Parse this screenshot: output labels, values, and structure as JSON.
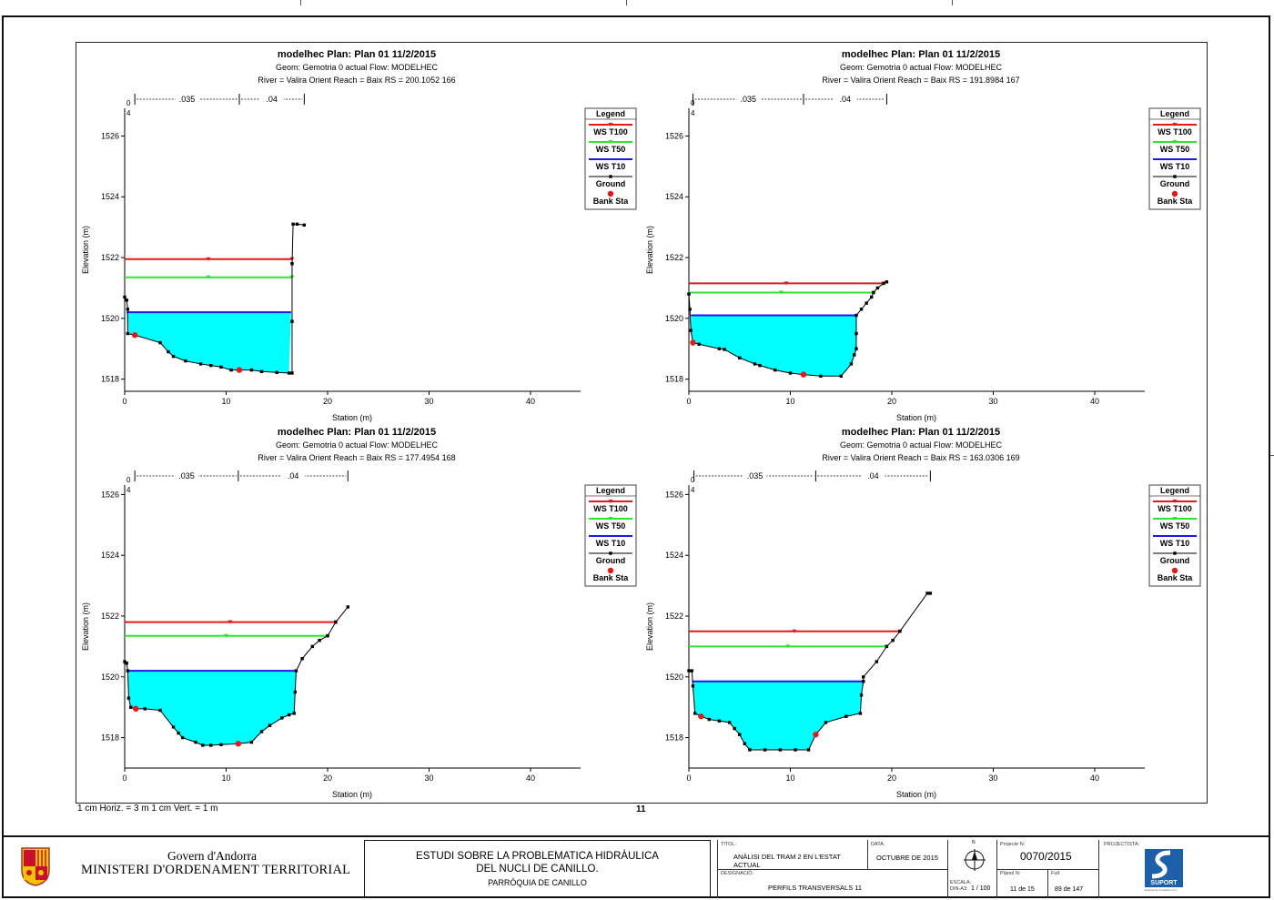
{
  "page": {
    "scale_note": "1 cm Horiz. = 3 m    1 cm Vert. = 1 m",
    "sheet_number": "11"
  },
  "chart_data": [
    {
      "type": "line",
      "title_line1": "modelhec        Plan: Plan 01     11/2/2015",
      "title_line2": "Geom: Gemotria 0 actual    Flow: MODELHEC",
      "title_line3": "River = Valira Orient    Reach = Baix      RS = 200.1052   166",
      "xlabel": "Station (m)",
      "ylabel": "Elevation (m)",
      "xlim": [
        0,
        45
      ],
      "ylim": [
        1517.6,
        1527.4
      ],
      "xticks": [
        0,
        10,
        20,
        30,
        40
      ],
      "yticks": [
        1518,
        1520,
        1522,
        1524,
        1526
      ],
      "top_marks": {
        "zero": "0",
        "four": "4"
      },
      "mannings": [
        {
          "label": ".035",
          "from": 1.0,
          "to": 11.3
        },
        {
          "label": ".04",
          "from": 11.3,
          "to": 17.7
        }
      ],
      "water_surfaces": [
        {
          "name": "WS T100",
          "elev": 1521.95,
          "x0": 0,
          "x1": 16.5
        },
        {
          "name": "WS T50",
          "elev": 1521.35,
          "x0": 0,
          "x1": 16.5
        },
        {
          "name": "WS T10",
          "elev": 1520.2,
          "x0": 0.2,
          "x1": 16.4
        }
      ],
      "ground": [
        [
          0,
          1520.7
        ],
        [
          0.2,
          1520.6
        ],
        [
          0.3,
          1520.3
        ],
        [
          0.3,
          1519.5
        ],
        [
          1.0,
          1519.45
        ],
        [
          3.5,
          1519.2
        ],
        [
          4.3,
          1518.9
        ],
        [
          4.8,
          1518.75
        ],
        [
          6.0,
          1518.6
        ],
        [
          7.5,
          1518.5
        ],
        [
          8.5,
          1518.45
        ],
        [
          9.5,
          1518.4
        ],
        [
          10.5,
          1518.3
        ],
        [
          11.3,
          1518.3
        ],
        [
          12.5,
          1518.3
        ],
        [
          13.5,
          1518.25
        ],
        [
          15.0,
          1518.22
        ],
        [
          16.2,
          1518.2
        ],
        [
          16.5,
          1518.2
        ],
        [
          16.5,
          1519.9
        ],
        [
          16.5,
          1521.8
        ],
        [
          16.6,
          1523.1
        ],
        [
          17.0,
          1523.1
        ],
        [
          17.7,
          1523.07
        ]
      ],
      "bank_sta": [
        [
          1.0,
          1519.45
        ],
        [
          11.3,
          1518.3
        ]
      ]
    },
    {
      "type": "line",
      "title_line1": "modelhec        Plan: Plan 01     11/2/2015",
      "title_line2": "Geom: Gemotria 0 actual    Flow: MODELHEC",
      "title_line3": "River = Valira Orient    Reach = Baix      RS = 191.8984   167",
      "xlabel": "Station (m)",
      "ylabel": "Elevation (m)",
      "xlim": [
        0,
        45
      ],
      "ylim": [
        1517.6,
        1527.4
      ],
      "xticks": [
        0,
        10,
        20,
        30,
        40
      ],
      "yticks": [
        1518,
        1520,
        1522,
        1524,
        1526
      ],
      "top_marks": {
        "zero": "0",
        "four": "4"
      },
      "mannings": [
        {
          "label": ".035",
          "from": 0.4,
          "to": 11.3
        },
        {
          "label": ".04",
          "from": 11.3,
          "to": 19.5
        }
      ],
      "water_surfaces": [
        {
          "name": "WS T100",
          "elev": 1521.15,
          "x0": 0,
          "x1": 19.2
        },
        {
          "name": "WS T50",
          "elev": 1520.85,
          "x0": 0,
          "x1": 18.2
        },
        {
          "name": "WS T10",
          "elev": 1520.1,
          "x0": 0.2,
          "x1": 16.5
        }
      ],
      "ground": [
        [
          0,
          1520.8
        ],
        [
          0.1,
          1520.3
        ],
        [
          0.2,
          1519.6
        ],
        [
          0.4,
          1519.2
        ],
        [
          1.0,
          1519.15
        ],
        [
          3.0,
          1519.0
        ],
        [
          3.5,
          1518.98
        ],
        [
          5.0,
          1518.7
        ],
        [
          6.5,
          1518.5
        ],
        [
          7.0,
          1518.45
        ],
        [
          8.5,
          1518.3
        ],
        [
          10.0,
          1518.2
        ],
        [
          11.3,
          1518.15
        ],
        [
          13.0,
          1518.1
        ],
        [
          15.0,
          1518.1
        ],
        [
          16.0,
          1518.5
        ],
        [
          16.3,
          1518.8
        ],
        [
          16.5,
          1519.0
        ],
        [
          16.5,
          1519.5
        ],
        [
          16.5,
          1520.1
        ],
        [
          17.0,
          1520.3
        ],
        [
          17.5,
          1520.5
        ],
        [
          18.0,
          1520.7
        ],
        [
          18.2,
          1520.85
        ],
        [
          18.6,
          1521.0
        ],
        [
          19.2,
          1521.15
        ],
        [
          19.5,
          1521.2
        ]
      ],
      "bank_sta": [
        [
          0.4,
          1519.2
        ],
        [
          11.3,
          1518.15
        ]
      ]
    },
    {
      "type": "line",
      "title_line1": "modelhec        Plan: Plan 01     11/2/2015",
      "title_line2": "Geom: Gemotria 0 actual    Flow: MODELHEC",
      "title_line3": "River = Valira Orient    Reach = Baix      RS = 177.4954   168",
      "xlabel": "Station (m)",
      "ylabel": "Elevation (m)",
      "xlim": [
        0,
        45
      ],
      "ylim": [
        1517.0,
        1526.8
      ],
      "xticks": [
        0,
        10,
        20,
        30,
        40
      ],
      "yticks": [
        1518,
        1520,
        1522,
        1524,
        1526
      ],
      "top_marks": {
        "zero": "0",
        "four": "4"
      },
      "mannings": [
        {
          "label": ".035",
          "from": 1.0,
          "to": 11.2
        },
        {
          "label": ".04",
          "from": 11.2,
          "to": 22.0
        }
      ],
      "water_surfaces": [
        {
          "name": "WS T100",
          "elev": 1521.8,
          "x0": 0,
          "x1": 20.8
        },
        {
          "name": "WS T50",
          "elev": 1521.35,
          "x0": 0,
          "x1": 20.0
        },
        {
          "name": "WS T10",
          "elev": 1520.2,
          "x0": 0.2,
          "x1": 16.9
        }
      ],
      "ground": [
        [
          0,
          1520.5
        ],
        [
          0.2,
          1520.45
        ],
        [
          0.3,
          1520.2
        ],
        [
          0.4,
          1519.3
        ],
        [
          0.6,
          1519.0
        ],
        [
          1.1,
          1518.95
        ],
        [
          2.0,
          1518.95
        ],
        [
          3.5,
          1518.9
        ],
        [
          4.8,
          1518.35
        ],
        [
          5.3,
          1518.15
        ],
        [
          5.7,
          1518.0
        ],
        [
          7.0,
          1517.85
        ],
        [
          7.7,
          1517.75
        ],
        [
          8.5,
          1517.75
        ],
        [
          9.5,
          1517.77
        ],
        [
          11.2,
          1517.8
        ],
        [
          12.5,
          1517.85
        ],
        [
          13.5,
          1518.2
        ],
        [
          14.3,
          1518.4
        ],
        [
          15.5,
          1518.65
        ],
        [
          16.2,
          1518.75
        ],
        [
          16.7,
          1518.8
        ],
        [
          16.8,
          1519.5
        ],
        [
          16.9,
          1520.2
        ],
        [
          17.5,
          1520.6
        ],
        [
          18.5,
          1521.0
        ],
        [
          19.2,
          1521.2
        ],
        [
          20.0,
          1521.35
        ],
        [
          20.8,
          1521.8
        ],
        [
          22.0,
          1522.3
        ]
      ],
      "bank_sta": [
        [
          1.1,
          1518.95
        ],
        [
          11.2,
          1517.8
        ]
      ]
    },
    {
      "type": "line",
      "title_line1": "modelhec        Plan: Plan 01     11/2/2015",
      "title_line2": "Geom: Gemotria 0 actual    Flow: MODELHEC",
      "title_line3": "River = Valira Orient    Reach = Baix      RS = 163.0306   169",
      "xlabel": "Station (m)",
      "ylabel": "Elevation (m)",
      "xlim": [
        0,
        45
      ],
      "ylim": [
        1517.0,
        1526.8
      ],
      "xticks": [
        0,
        10,
        20,
        30,
        40
      ],
      "yticks": [
        1518,
        1520,
        1522,
        1524,
        1526
      ],
      "top_marks": {
        "zero": "0",
        "four": "4"
      },
      "mannings": [
        {
          "label": ".035",
          "from": 0.5,
          "to": 12.5
        },
        {
          "label": ".04",
          "from": 12.5,
          "to": 23.8
        }
      ],
      "water_surfaces": [
        {
          "name": "WS T100",
          "elev": 1521.5,
          "x0": 0,
          "x1": 20.8
        },
        {
          "name": "WS T50",
          "elev": 1521.0,
          "x0": 0,
          "x1": 19.5
        },
        {
          "name": "WS T10",
          "elev": 1519.85,
          "x0": 0.3,
          "x1": 17.2
        }
      ],
      "ground": [
        [
          0,
          1520.2
        ],
        [
          0.3,
          1520.2
        ],
        [
          0.4,
          1519.7
        ],
        [
          0.6,
          1518.8
        ],
        [
          1.2,
          1518.7
        ],
        [
          2.0,
          1518.6
        ],
        [
          3.0,
          1518.55
        ],
        [
          4.0,
          1518.5
        ],
        [
          4.5,
          1518.3
        ],
        [
          5.0,
          1518.1
        ],
        [
          5.5,
          1517.8
        ],
        [
          6.0,
          1517.6
        ],
        [
          7.5,
          1517.6
        ],
        [
          9.0,
          1517.6
        ],
        [
          10.5,
          1517.6
        ],
        [
          11.8,
          1517.6
        ],
        [
          12.5,
          1518.1
        ],
        [
          13.5,
          1518.5
        ],
        [
          15.5,
          1518.7
        ],
        [
          16.9,
          1518.8
        ],
        [
          17.0,
          1519.4
        ],
        [
          17.2,
          1519.85
        ],
        [
          17.2,
          1520.0
        ],
        [
          18.5,
          1520.5
        ],
        [
          19.5,
          1521.0
        ],
        [
          20.1,
          1521.2
        ],
        [
          20.8,
          1521.5
        ],
        [
          23.5,
          1522.75
        ],
        [
          23.8,
          1522.75
        ]
      ],
      "bank_sta": [
        [
          1.2,
          1518.7
        ],
        [
          12.5,
          1518.1
        ]
      ]
    }
  ],
  "legend": {
    "title": "Legend",
    "items": [
      {
        "label": "WS T100",
        "color": "#e31a1c",
        "marker": "tri"
      },
      {
        "label": "WS T50",
        "color": "#2ee62e",
        "marker": "tri"
      },
      {
        "label": "WS T10",
        "color": "#1a1ae6",
        "marker": "none"
      },
      {
        "label": "Ground",
        "color": "#000000",
        "marker": "square"
      },
      {
        "label": "Bank Sta",
        "color": "#e31a1c",
        "marker": "dot"
      }
    ]
  },
  "colors": {
    "water_fill": "#00ffff",
    "axis": "#000000"
  },
  "titleblock": {
    "gov_line1": "Govern d'Andorra",
    "gov_line2": "MINISTERI D'ORDENAMENT TERRITORIAL",
    "study_line1": "ESTUDI SOBRE LA PROBLEMATICA HIDRÀULICA",
    "study_line2": "DEL NUCLI DE CANILLO.",
    "study_line3": "PARRÒQUIA DE CANILLO",
    "titol_label": "TITOL:",
    "titol_line1": "ANÀLISI DEL TRAM 2 EN L'ESTAT",
    "titol_line2": "ACTUAL",
    "data_label": "DATA:",
    "data_value": "OCTUBRE DE 2015",
    "designacio_label": "DESIGNACIÓ:",
    "designacio_value": "PERFILS TRANSVERSALS 11",
    "escala_label": "ESCALA:",
    "escala_sub": "DIN-A3:",
    "escala_value": "1 / 100",
    "north_label": "N",
    "projecte_label": "Projecte N:",
    "projecte_value": "0070/2015",
    "planol_label": "Plànol N:",
    "planol_value": "11 de 15",
    "full_label": "Full:",
    "full_value": "89  de 147",
    "projectista_label": "PROJECTISTA:",
    "logo_text": "SUPORT",
    "logo_sub": "Enginyeria Consultors S.A."
  }
}
